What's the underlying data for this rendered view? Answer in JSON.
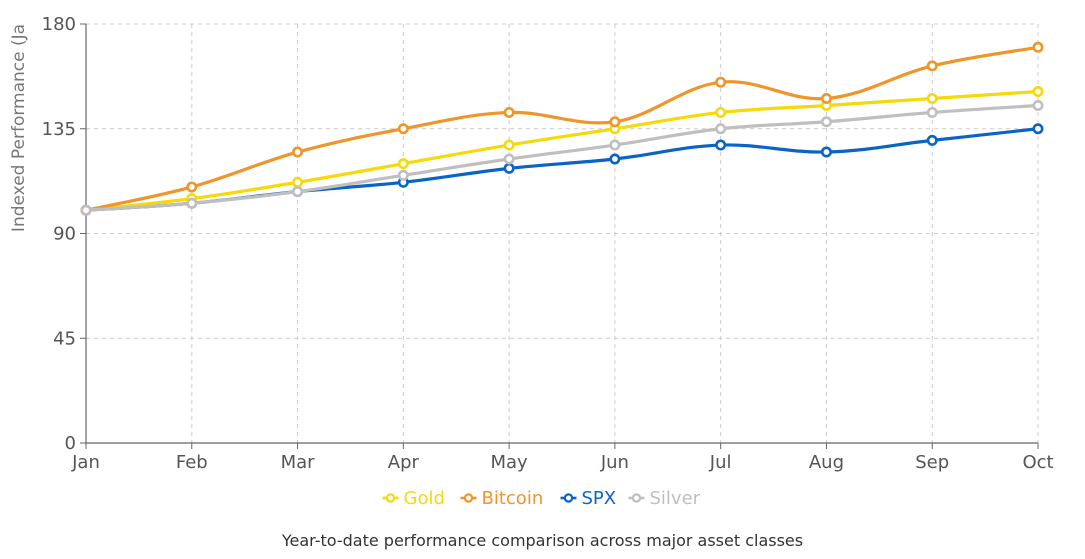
{
  "chart_data": {
    "type": "line",
    "title": "",
    "xlabel": "",
    "ylabel": "Indexed Performance (Ja",
    "categories": [
      "Jan",
      "Feb",
      "Mar",
      "Apr",
      "May",
      "Jun",
      "Jul",
      "Aug",
      "Sep",
      "Oct"
    ],
    "ylim": [
      0,
      180
    ],
    "yticks": [
      0,
      45,
      90,
      135,
      180
    ],
    "grid": true,
    "legend_position": "bottom",
    "series": [
      {
        "name": "Gold",
        "color": "#f5d90a",
        "values": [
          100,
          105,
          112,
          120,
          128,
          135,
          142,
          145,
          148,
          151
        ]
      },
      {
        "name": "Bitcoin",
        "color": "#f0952a",
        "values": [
          100,
          110,
          125,
          135,
          142,
          138,
          155,
          148,
          162,
          170
        ]
      },
      {
        "name": "SPX",
        "color": "#0a64c8",
        "values": [
          100,
          103,
          108,
          112,
          118,
          122,
          128,
          125,
          130,
          135
        ]
      },
      {
        "name": "Silver",
        "color": "#bfbfbf",
        "values": [
          100,
          103,
          108,
          115,
          122,
          128,
          135,
          138,
          142,
          145
        ]
      }
    ],
    "caption": "Year-to-date performance comparison across major asset classes"
  }
}
